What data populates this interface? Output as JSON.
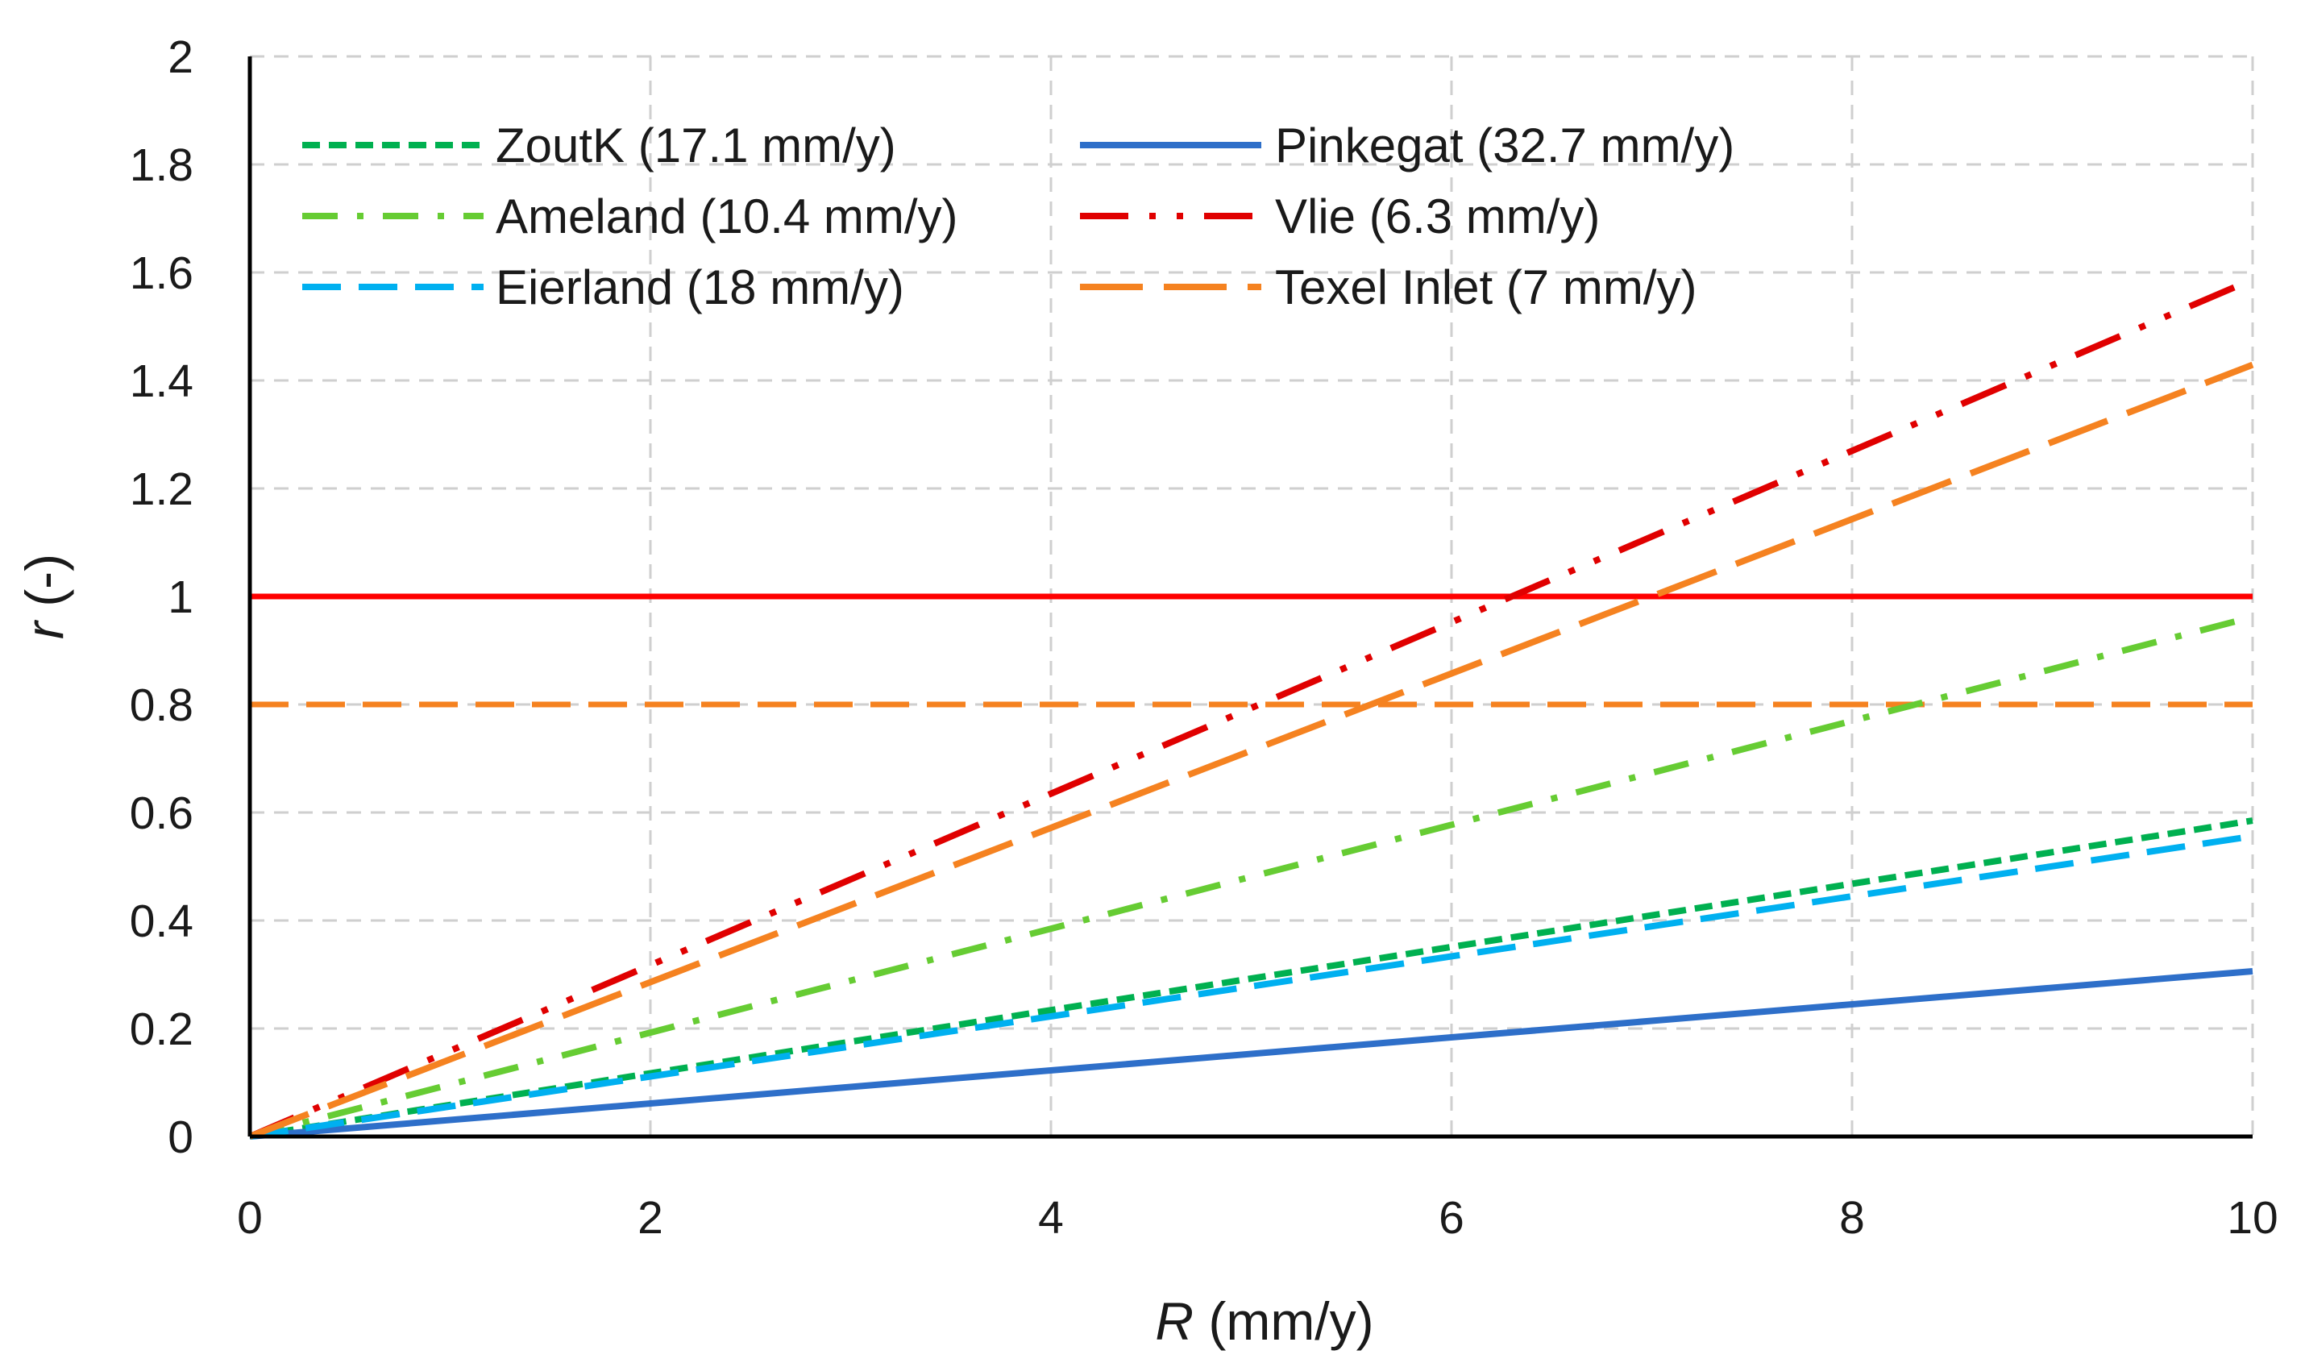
{
  "chart_data": {
    "type": "line",
    "title": "",
    "xlabel_symbol": "R",
    "xlabel_unit": "(mm/y)",
    "ylabel_symbol": "r",
    "ylabel_unit": "(-)",
    "xlim": [
      0,
      10
    ],
    "ylim": [
      0,
      2
    ],
    "xticks": [
      0,
      2,
      4,
      6,
      8,
      10
    ],
    "xtick_labels": [
      "0",
      "2",
      "4",
      "6",
      "8",
      "10"
    ],
    "yticks": [
      0,
      0.2,
      0.4,
      0.6,
      0.8,
      1,
      1.2,
      1.4,
      1.6,
      1.8,
      2
    ],
    "ytick_labels": [
      "0",
      "0.2",
      "0.4",
      "0.6",
      "0.8",
      "1",
      "1.2",
      "1.4",
      "1.6",
      "1.8",
      "2"
    ],
    "grid": true,
    "legend_position": "top-left",
    "series": [
      {
        "name": "ZoutK (17.1 mm/y)",
        "color": "#00b050",
        "style": "short-dash",
        "x": [
          0,
          10
        ],
        "y": [
          0,
          0.585
        ]
      },
      {
        "name": "Pinkegat (32.7 mm/y)",
        "color": "#2e6fc9",
        "style": "solid",
        "x": [
          0,
          10
        ],
        "y": [
          0,
          0.306
        ]
      },
      {
        "name": "Ameland (10.4 mm/y)",
        "color": "#66cc33",
        "style": "dash-dot",
        "x": [
          0,
          10
        ],
        "y": [
          0,
          0.962
        ]
      },
      {
        "name": "Vlie (6.3 mm/y)",
        "color": "#e00000",
        "style": "long-dash-dot-dot",
        "x": [
          0,
          10
        ],
        "y": [
          0,
          1.587
        ]
      },
      {
        "name": "Eierland (18 mm/y)",
        "color": "#00b0f0",
        "style": "dash",
        "x": [
          0,
          10
        ],
        "y": [
          0,
          0.556
        ]
      },
      {
        "name": "Texel Inlet (7 mm/y)",
        "color": "#f58220",
        "style": "long-dash",
        "x": [
          0,
          10
        ],
        "y": [
          0,
          1.429
        ]
      }
    ],
    "reference_lines": [
      {
        "y": 1.0,
        "color": "#ff0000",
        "style": "solid"
      },
      {
        "y": 0.8,
        "color": "#f58220",
        "style": "dash"
      }
    ]
  }
}
